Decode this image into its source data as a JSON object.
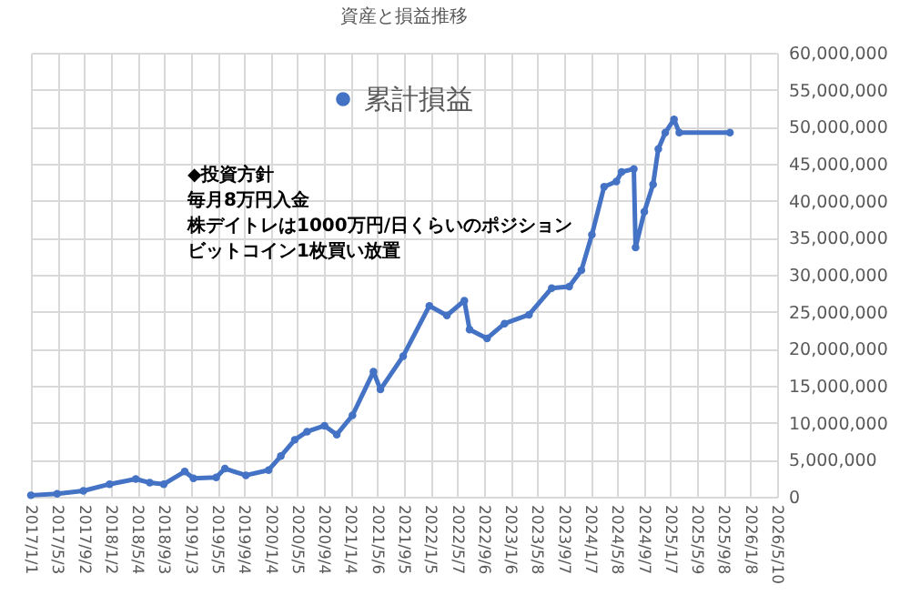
{
  "chart_data": {
    "type": "line",
    "title": "資産と損益推移",
    "annotations": [
      "◆投資方針",
      "毎月8万円入金",
      "株デイトレは1000万円/日くらいのポジション",
      "ビットコイン1枚買い放置"
    ],
    "x": [
      "2017-01-01",
      "2017-05-01",
      "2017-08-29",
      "2017-12-27",
      "2018-04-26",
      "2018-06-29",
      "2018-09-01",
      "2018-12-06",
      "2019-01-15",
      "2019-04-29",
      "2019-06-08",
      "2019-09-12",
      "2019-12-25",
      "2020-02-19",
      "2020-04-23",
      "2020-06-18",
      "2020-09-06",
      "2020-11-01",
      "2021-01-12",
      "2021-04-18",
      "2021-05-20",
      "2021-09-01",
      "2021-12-30",
      "2022-03-20",
      "2022-06-08",
      "2022-07-02",
      "2022-09-20",
      "2022-12-09",
      "2023-03-31",
      "2023-07-13",
      "2023-10-01",
      "2023-11-26",
      "2024-01-13",
      "2024-03-09",
      "2024-05-04",
      "2024-05-28",
      "2024-07-23",
      "2024-07-31",
      "2024-09-09",
      "2024-10-19",
      "2024-11-12",
      "2024-12-14",
      "2025-01-23",
      "2025-02-16",
      "2025-10-06"
    ],
    "series": [
      {
        "name": "累計損益",
        "color": "#4472c4",
        "values": [
          200000,
          400000,
          800000,
          1700000,
          2400000,
          1900000,
          1700000,
          3400000,
          2500000,
          2600000,
          3800000,
          2900000,
          3600000,
          5500000,
          7700000,
          8800000,
          9600000,
          8400000,
          11000000,
          16900000,
          14500000,
          19000000,
          25800000,
          24500000,
          26500000,
          22600000,
          21400000,
          23400000,
          24600000,
          28200000,
          28400000,
          30600000,
          35400000,
          41900000,
          42600000,
          43900000,
          44300000,
          33700000,
          38500000,
          42200000,
          47000000,
          49200000,
          51000000,
          49200000,
          49200000
        ]
      }
    ],
    "xlim": [
      "2017-01-01",
      "2026-05-10"
    ],
    "xticks": [
      {
        "value": "2017-01-01",
        "label": "2017/1/1"
      },
      {
        "value": "2017-05-03",
        "label": "2017/5/3"
      },
      {
        "value": "2017-09-02",
        "label": "2017/9/2"
      },
      {
        "value": "2018-01-02",
        "label": "2018/1/2"
      },
      {
        "value": "2018-05-04",
        "label": "2018/5/4"
      },
      {
        "value": "2018-09-03",
        "label": "2018/9/3"
      },
      {
        "value": "2019-01-03",
        "label": "2019/1/3"
      },
      {
        "value": "2019-05-05",
        "label": "2019/5/5"
      },
      {
        "value": "2019-09-04",
        "label": "2019/9/4"
      },
      {
        "value": "2020-01-04",
        "label": "2020/1/4"
      },
      {
        "value": "2020-05-05",
        "label": "2020/5/5"
      },
      {
        "value": "2020-09-04",
        "label": "2020/9/4"
      },
      {
        "value": "2021-01-04",
        "label": "2021/1/4"
      },
      {
        "value": "2021-05-06",
        "label": "2021/5/6"
      },
      {
        "value": "2021-09-05",
        "label": "2021/9/5"
      },
      {
        "value": "2022-01-05",
        "label": "2022/1/5"
      },
      {
        "value": "2022-05-07",
        "label": "2022/5/7"
      },
      {
        "value": "2022-09-06",
        "label": "2022/9/6"
      },
      {
        "value": "2023-01-06",
        "label": "2023/1/6"
      },
      {
        "value": "2023-05-08",
        "label": "2023/5/8"
      },
      {
        "value": "2023-09-07",
        "label": "2023/9/7"
      },
      {
        "value": "2024-01-07",
        "label": "2024/1/7"
      },
      {
        "value": "2024-05-08",
        "label": "2024/5/8"
      },
      {
        "value": "2024-09-07",
        "label": "2024/9/7"
      },
      {
        "value": "2025-01-07",
        "label": "2025/1/7"
      },
      {
        "value": "2025-05-09",
        "label": "2025/5/9"
      },
      {
        "value": "2025-09-08",
        "label": "2025/9/8"
      },
      {
        "value": "2026-01-08",
        "label": "2026/1/8"
      },
      {
        "value": "2026-05-10",
        "label": "2026/5/10"
      }
    ],
    "ylim": [
      0,
      60000000
    ],
    "yticks": [
      0,
      {
        "value": 5000000,
        "label": "5,000,000"
      },
      {
        "value": 10000000,
        "label": "10,000,000"
      },
      {
        "value": 15000000,
        "label": "15,000,000"
      },
      {
        "value": 20000000,
        "label": "20,000,000"
      },
      {
        "value": 25000000,
        "label": "25,000,000"
      },
      {
        "value": 30000000,
        "label": "30,000,000"
      },
      {
        "value": 35000000,
        "label": "35,000,000"
      },
      {
        "value": 40000000,
        "label": "40,000,000"
      },
      {
        "value": 45000000,
        "label": "45,000,000"
      },
      {
        "value": 50000000,
        "label": "50,000,000"
      },
      {
        "value": 55000000,
        "label": "55,000,000"
      },
      {
        "value": 60000000,
        "label": "60,000,000"
      }
    ],
    "grid": true,
    "legend": "top",
    "marker": "circle",
    "line_style": "solid"
  }
}
